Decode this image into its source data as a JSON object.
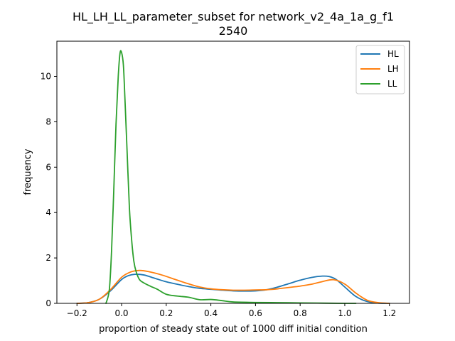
{
  "chart_data": {
    "type": "line",
    "title_line1": "HL_LH_LL_parameter_subset for network_v2_4a_1a_g_f1",
    "title_line2": "2540",
    "xlabel": "proportion of steady state out of 1000 diff initial condition",
    "ylabel": "frequency",
    "xlim": [
      -0.29,
      1.29
    ],
    "ylim": [
      0,
      11.55
    ],
    "xticks": [
      -0.2,
      0.0,
      0.2,
      0.4,
      0.6,
      0.8,
      1.0,
      1.2
    ],
    "xtick_labels": [
      "−0.2",
      "0.0",
      "0.2",
      "0.4",
      "0.6",
      "0.8",
      "1.0",
      "1.2"
    ],
    "yticks": [
      0,
      2,
      4,
      6,
      8,
      10
    ],
    "ytick_labels": [
      "0",
      "2",
      "4",
      "6",
      "8",
      "10"
    ],
    "grid": false,
    "legend_position": "upper right",
    "series": [
      {
        "name": "HL",
        "color": "#1f77b4",
        "x": [
          -0.2,
          -0.15,
          -0.1,
          -0.05,
          0.0,
          0.03,
          0.06,
          0.1,
          0.15,
          0.2,
          0.25,
          0.3,
          0.35,
          0.4,
          0.45,
          0.5,
          0.55,
          0.6,
          0.65,
          0.7,
          0.75,
          0.8,
          0.85,
          0.9,
          0.93,
          0.96,
          1.0,
          1.05,
          1.1,
          1.15,
          1.2
        ],
        "y": [
          0.0,
          0.03,
          0.18,
          0.55,
          1.05,
          1.22,
          1.28,
          1.25,
          1.1,
          0.95,
          0.84,
          0.74,
          0.66,
          0.62,
          0.58,
          0.55,
          0.54,
          0.55,
          0.6,
          0.72,
          0.87,
          1.02,
          1.14,
          1.2,
          1.18,
          1.06,
          0.72,
          0.3,
          0.08,
          0.01,
          0.0
        ]
      },
      {
        "name": "LH",
        "color": "#ff7f0e",
        "x": [
          -0.2,
          -0.15,
          -0.1,
          -0.05,
          0.0,
          0.04,
          0.08,
          0.12,
          0.18,
          0.25,
          0.3,
          0.35,
          0.4,
          0.45,
          0.5,
          0.55,
          0.6,
          0.65,
          0.7,
          0.75,
          0.8,
          0.85,
          0.9,
          0.95,
          1.0,
          1.05,
          1.1,
          1.15,
          1.2
        ],
        "y": [
          0.0,
          0.03,
          0.18,
          0.6,
          1.15,
          1.38,
          1.45,
          1.4,
          1.25,
          1.02,
          0.86,
          0.72,
          0.64,
          0.6,
          0.58,
          0.58,
          0.59,
          0.6,
          0.64,
          0.7,
          0.76,
          0.84,
          0.96,
          1.04,
          0.85,
          0.45,
          0.14,
          0.03,
          0.0
        ]
      },
      {
        "name": "LL",
        "color": "#2ca02c",
        "x": [
          -0.07,
          -0.055,
          -0.045,
          -0.035,
          -0.025,
          -0.015,
          -0.007,
          0.0,
          0.008,
          0.015,
          0.025,
          0.035,
          0.045,
          0.055,
          0.065,
          0.08,
          0.1,
          0.13,
          0.16,
          0.2,
          0.25,
          0.3,
          0.35,
          0.4,
          0.45,
          0.5,
          0.6,
          0.7,
          0.8,
          0.9,
          1.0,
          1.05
        ],
        "y": [
          0.0,
          0.6,
          2.3,
          5.0,
          7.9,
          10.0,
          11.02,
          11.05,
          10.5,
          9.0,
          6.6,
          4.2,
          2.8,
          1.85,
          1.4,
          1.05,
          0.9,
          0.75,
          0.62,
          0.4,
          0.32,
          0.27,
          0.16,
          0.17,
          0.12,
          0.06,
          0.04,
          0.03,
          0.02,
          0.01,
          0.0,
          0.0
        ]
      }
    ]
  }
}
